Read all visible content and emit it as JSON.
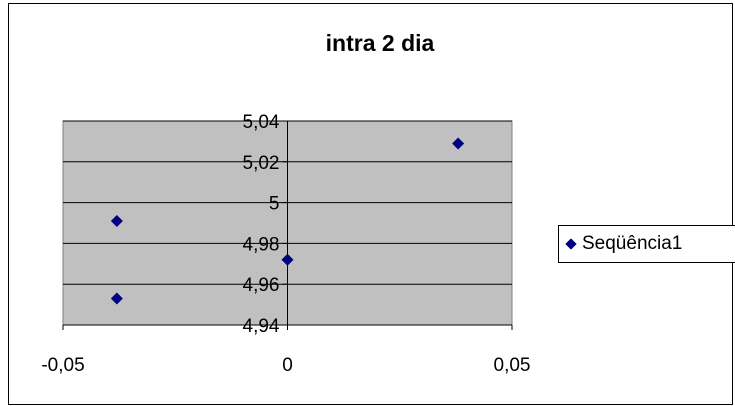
{
  "chart_data": {
    "type": "scatter",
    "title": "intra 2 dia",
    "xlabel": "",
    "ylabel": "",
    "xlim": [
      -0.05,
      0.05
    ],
    "ylim": [
      4.94,
      5.04
    ],
    "x_ticks": [
      "-0,05",
      "0",
      "0,05"
    ],
    "y_ticks": [
      "4,94",
      "4,96",
      "4,98",
      "5",
      "5,02",
      "5,04"
    ],
    "grid": true,
    "legend_position": "right",
    "plot_background": "#c0c0c0",
    "marker_color": "#000080",
    "series": [
      {
        "name": "Seqüência1",
        "points": [
          {
            "x": -0.038,
            "y": 4.991
          },
          {
            "x": -0.038,
            "y": 4.953
          },
          {
            "x": 0.0,
            "y": 4.972
          },
          {
            "x": 0.038,
            "y": 5.029
          }
        ]
      }
    ]
  }
}
